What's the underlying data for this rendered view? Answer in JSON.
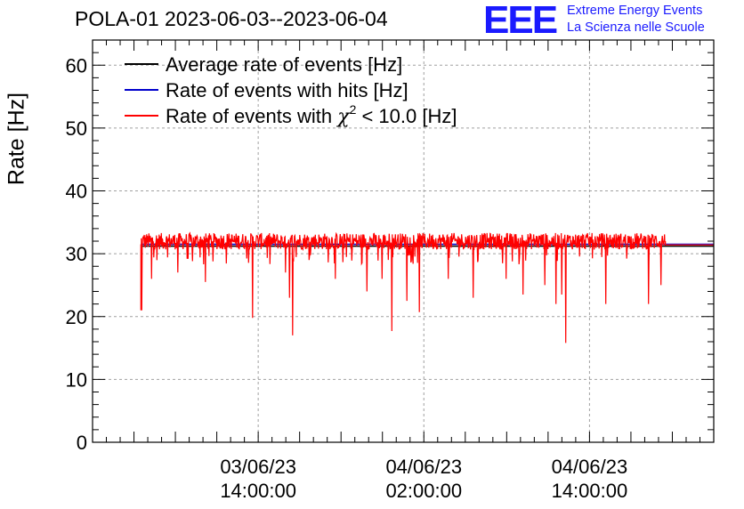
{
  "header": {
    "title": "POLA-01 2023-06-03--2023-06-04",
    "logo_mark": "EEE",
    "logo_line1": "Extreme Energy Events",
    "logo_line2": "La Scienza nelle Scuole"
  },
  "colors": {
    "average": "#000000",
    "hits": "#0000cc",
    "chi2": "#ff0000",
    "grid": "#a0a0a0",
    "logo": "#1a1aff"
  },
  "chart_data": {
    "type": "line",
    "title": "POLA-01 2023-06-03--2023-06-04",
    "ylabel": "Rate [Hz]",
    "xlabel": "",
    "ylim": [
      0,
      64
    ],
    "yticks": [
      0,
      10,
      20,
      30,
      40,
      50,
      60
    ],
    "x_range_hours": [
      0,
      45
    ],
    "xtick_labels": [
      {
        "line1": "03/06/23",
        "line2": "14:00:00",
        "hour": 12
      },
      {
        "line1": "04/06/23",
        "line2": "02:00:00",
        "hour": 24
      },
      {
        "line1": "04/06/23",
        "line2": "14:00:00",
        "hour": 36
      }
    ],
    "grid": true,
    "legend_position": "top-left",
    "legend": [
      {
        "label_main": "Average rate of events [Hz]",
        "color": "#000000"
      },
      {
        "label_main": "Rate of events with hits [Hz]",
        "color": "#0000cc"
      },
      {
        "label_pre": "Rate of events with ",
        "symbol": "χ",
        "sup": "2",
        "label_post": " < 10.0 [Hz]",
        "color": "#ff0000"
      }
    ],
    "series": [
      {
        "name": "Average rate of events [Hz]",
        "baseline": 31.2,
        "x_start": 3.5,
        "x_end": 45
      },
      {
        "name": "Rate of events with hits [Hz]",
        "baseline": 31.5,
        "x_start": 3.5,
        "x_end": 45
      },
      {
        "name": "Rate of events with χ2 < 10.0 [Hz]",
        "baseline": 31.5,
        "noise_band": [
          29.8,
          33.3
        ],
        "x_start": 3.5,
        "x_end": 41.5,
        "tail_value": 31.4,
        "dips": [
          {
            "hour": 3.6,
            "value": 21
          },
          {
            "hour": 4.3,
            "value": 26
          },
          {
            "hour": 6.2,
            "value": 27
          },
          {
            "hour": 8.2,
            "value": 25.5
          },
          {
            "hour": 11.6,
            "value": 19.8
          },
          {
            "hour": 14.0,
            "value": 27
          },
          {
            "hour": 14.3,
            "value": 23
          },
          {
            "hour": 14.5,
            "value": 17
          },
          {
            "hour": 17.6,
            "value": 26
          },
          {
            "hour": 19.9,
            "value": 24
          },
          {
            "hour": 21.0,
            "value": 26
          },
          {
            "hour": 21.7,
            "value": 17.7
          },
          {
            "hour": 22.8,
            "value": 22.5
          },
          {
            "hour": 23.7,
            "value": 20.7
          },
          {
            "hour": 25.8,
            "value": 26
          },
          {
            "hour": 27.6,
            "value": 23
          },
          {
            "hour": 30.0,
            "value": 26
          },
          {
            "hour": 31.2,
            "value": 23.5
          },
          {
            "hour": 32.8,
            "value": 25
          },
          {
            "hour": 33.6,
            "value": 22
          },
          {
            "hour": 34.0,
            "value": 23.5
          },
          {
            "hour": 34.3,
            "value": 15.8
          },
          {
            "hour": 37.2,
            "value": 22
          },
          {
            "hour": 40.3,
            "value": 22
          },
          {
            "hour": 41.2,
            "value": 25
          }
        ]
      }
    ]
  }
}
